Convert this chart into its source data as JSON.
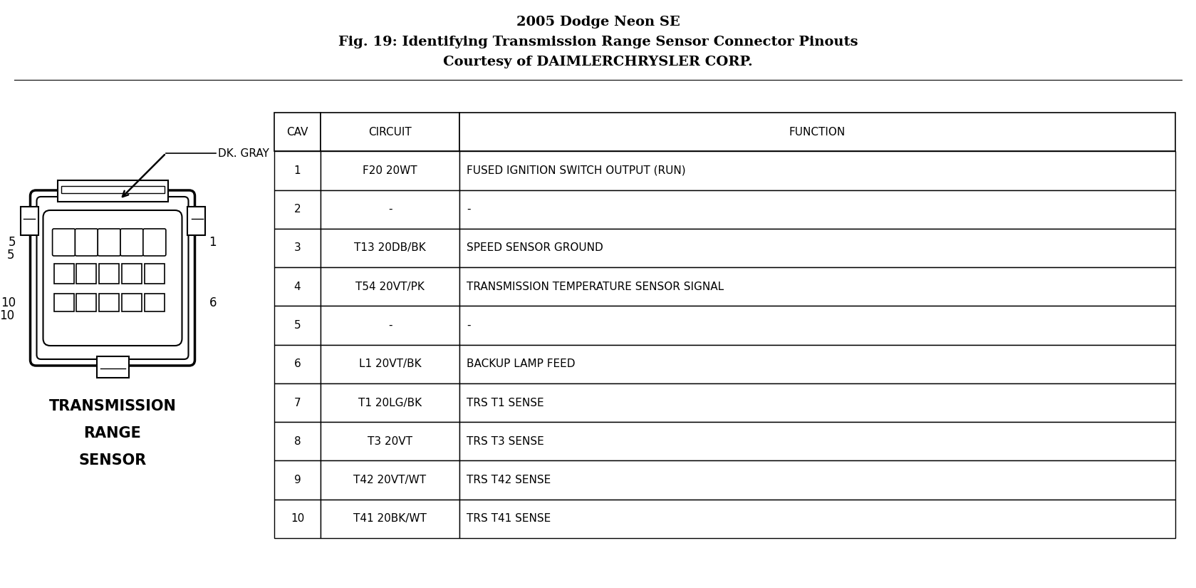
{
  "title_line1": "2005 Dodge Neon SE",
  "title_line2": "Fig. 19: Identifying Transmission Range Sensor Connector Pinouts",
  "title_line3": "Courtesy of DAIMLERCHRYSLER CORP.",
  "bg_color": "#ffffff",
  "table_header": [
    "CAV",
    "CIRCUIT",
    "FUNCTION"
  ],
  "table_rows": [
    [
      "1",
      "F20 20WT",
      "FUSED IGNITION SWITCH OUTPUT (RUN)"
    ],
    [
      "2",
      "-",
      "-"
    ],
    [
      "3",
      "T13 20DB/BK",
      "SPEED SENSOR GROUND"
    ],
    [
      "4",
      "T54 20VT/PK",
      "TRANSMISSION TEMPERATURE SENSOR SIGNAL"
    ],
    [
      "5",
      "-",
      "-"
    ],
    [
      "6",
      "L1 20VT/BK",
      "BACKUP LAMP FEED"
    ],
    [
      "7",
      "T1 20LG/BK",
      "TRS T1 SENSE"
    ],
    [
      "8",
      "T3 20VT",
      "TRS T3 SENSE"
    ],
    [
      "9",
      "T42 20VT/WT",
      "TRS T42 SENSE"
    ],
    [
      "10",
      "T41 20BK/WT",
      "TRS T41 SENSE"
    ]
  ],
  "connector_label": "DK. GRAY",
  "connector_sublabels": [
    "TRANSMISSION",
    "RANGE",
    "SENSOR"
  ]
}
